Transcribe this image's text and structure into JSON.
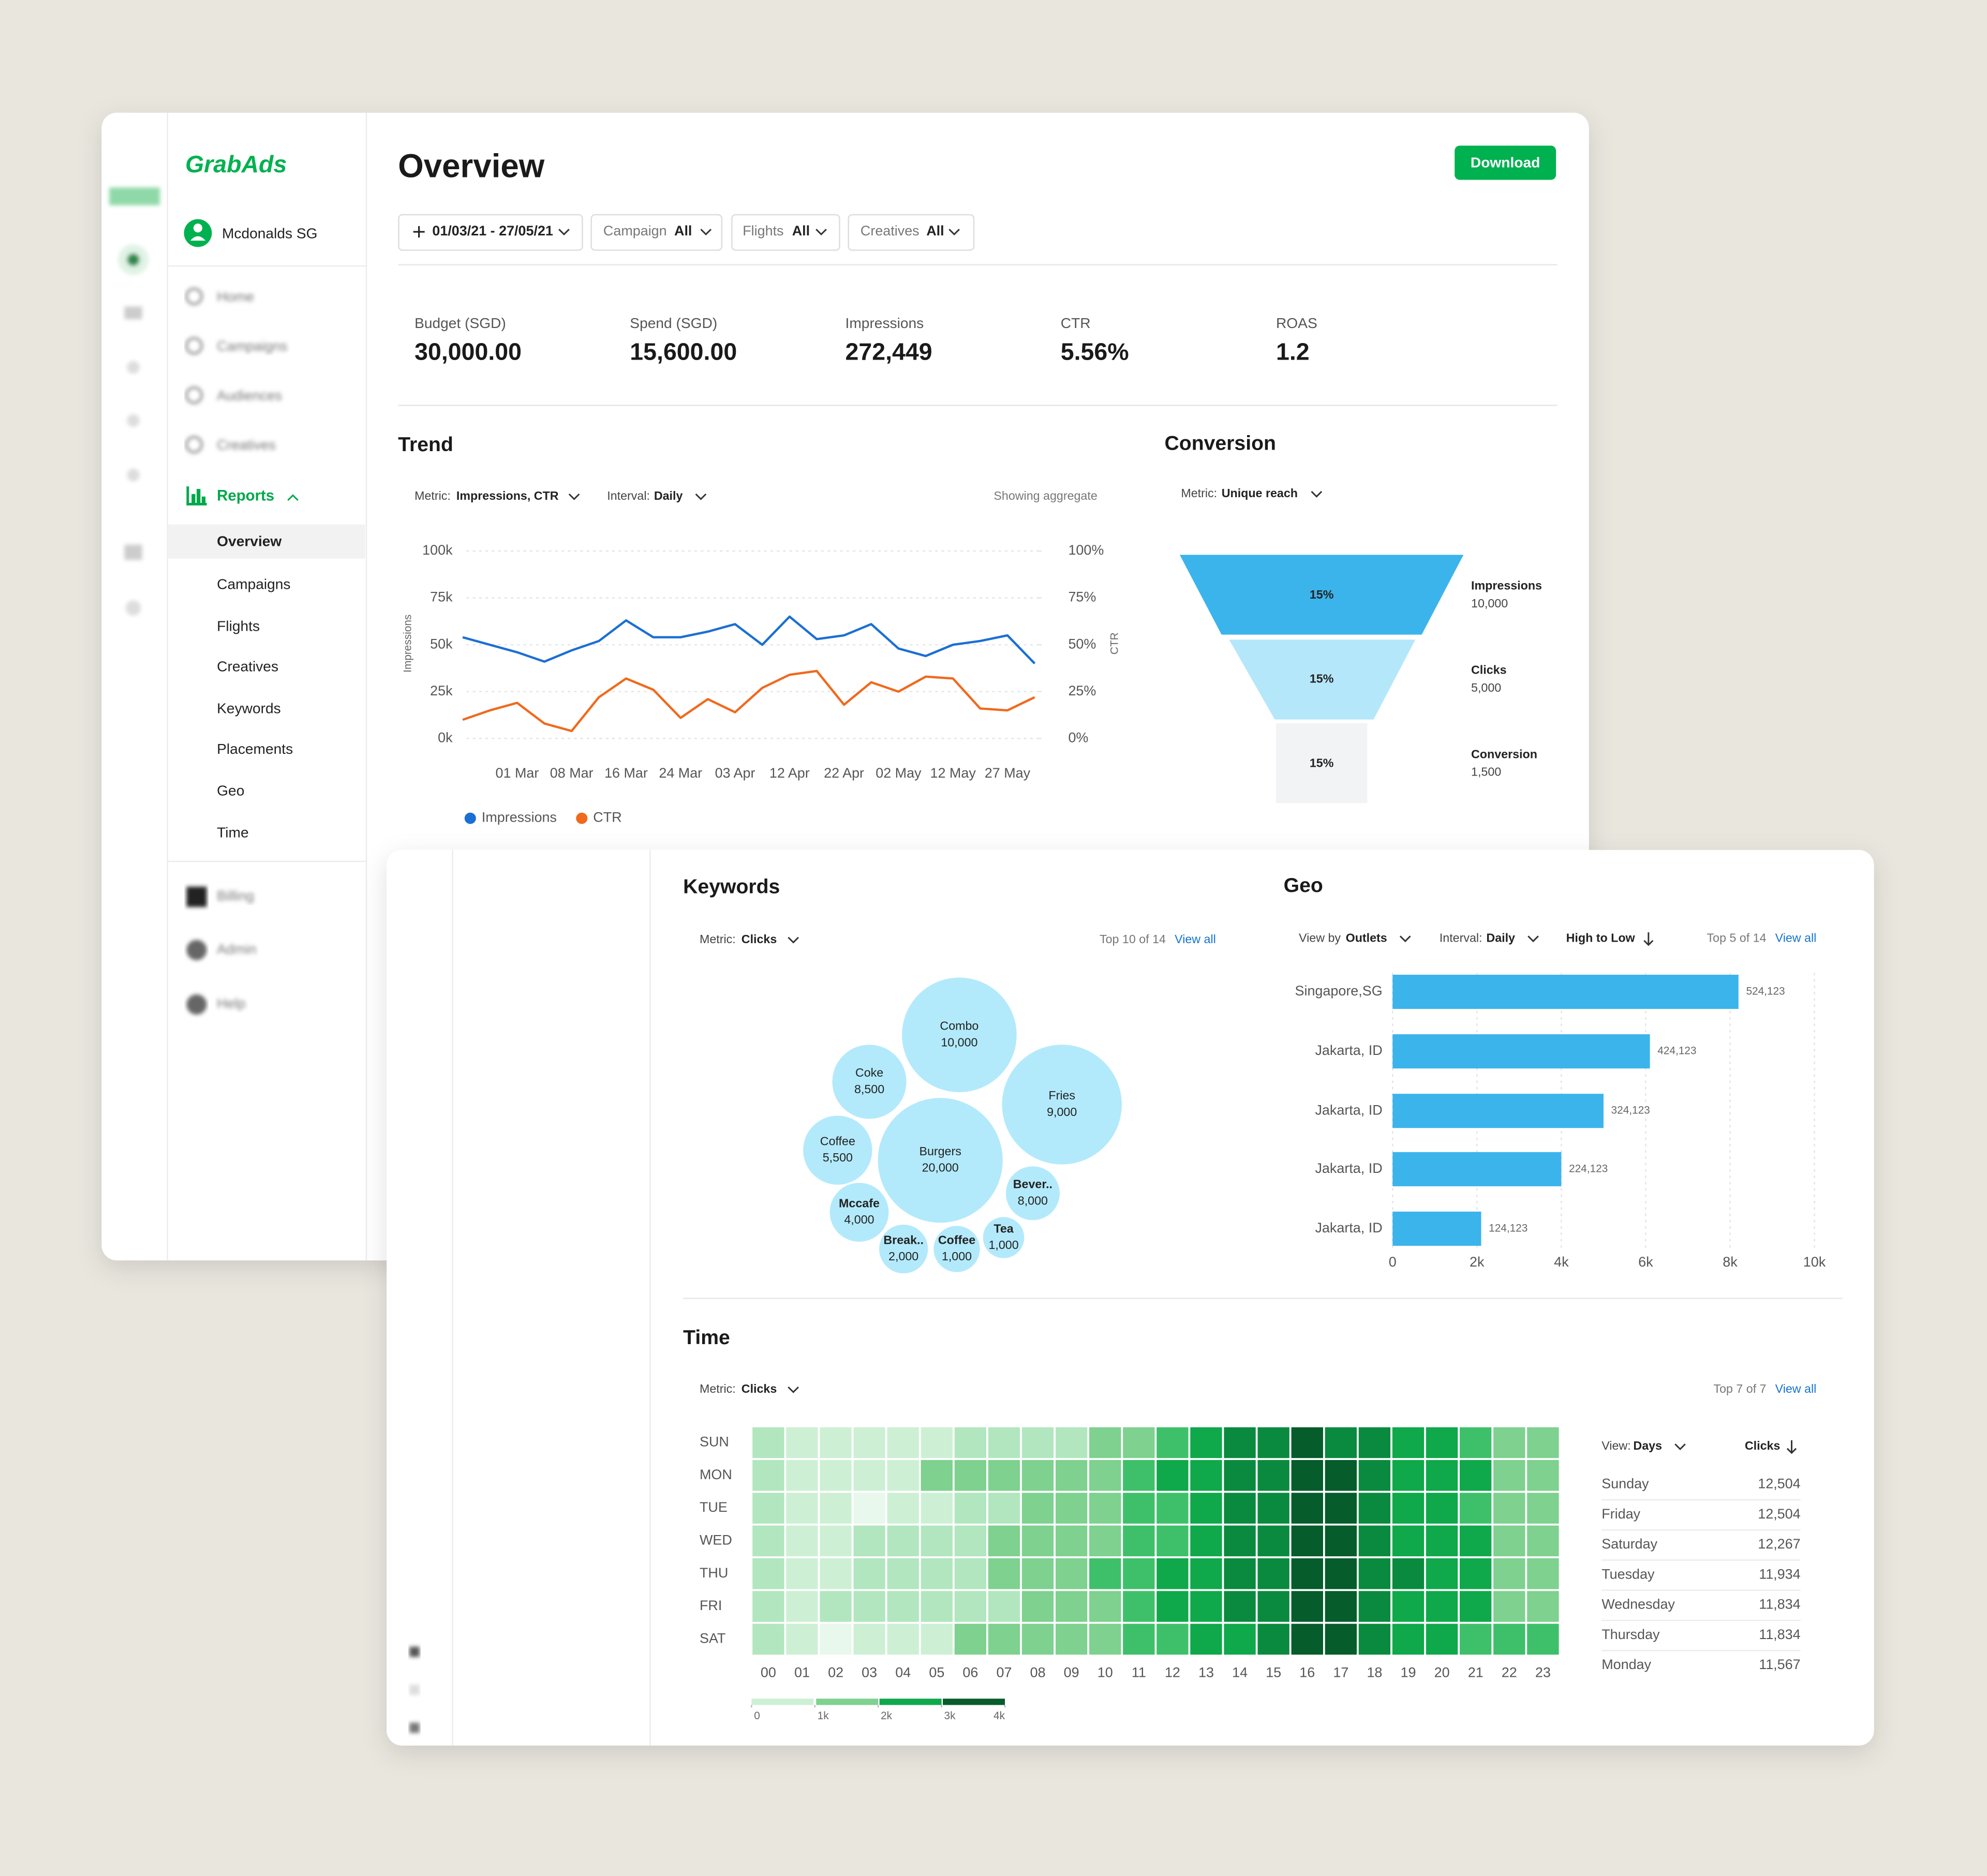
{
  "sidebar": {
    "brand": "GrabAds",
    "account": "Mcdonalds SG",
    "nav": [
      "Home",
      "Campaigns",
      "Audiences",
      "Creatives"
    ],
    "reports": "Reports",
    "reports_nav": [
      "Overview",
      "Campaigns",
      "Flights",
      "Creatives",
      "Keywords",
      "Placements",
      "Geo",
      "Time"
    ],
    "footer_nav": [
      "Billing",
      "Admin",
      "Help"
    ]
  },
  "header": {
    "title": "Overview",
    "download": "Download",
    "date_range": "01/03/21 - 27/05/21",
    "filters": [
      {
        "label": "Campaign",
        "value": "All"
      },
      {
        "label": "Flights",
        "value": "All"
      },
      {
        "label": "Creatives",
        "value": "All"
      }
    ]
  },
  "kpis": [
    {
      "label": "Budget (SGD)",
      "value": "30,000.00"
    },
    {
      "label": "Spend (SGD)",
      "value": "15,600.00"
    },
    {
      "label": "Impressions",
      "value": "272,449"
    },
    {
      "label": "CTR",
      "value": "5.56%"
    },
    {
      "label": "ROAS",
      "value": "1.2"
    }
  ],
  "trend": {
    "title": "Trend",
    "metric_label": "Metric:",
    "metric": "Impressions, CTR",
    "interval_label": "Interval:",
    "interval": "Daily",
    "note": "Showing aggregate",
    "chart_data": {
      "type": "line",
      "ylabel": "Impressions",
      "y2label": "CTR",
      "grid": true,
      "categories": [
        null,
        null,
        "01 Mar",
        null,
        "08 Mar",
        null,
        "16 Mar",
        null,
        "24 Mar",
        null,
        "03 Apr",
        null,
        "12 Apr",
        null,
        "22 Apr",
        null,
        "02 May",
        null,
        "12 May",
        null,
        "27 May",
        null
      ],
      "series": [
        {
          "name": "Impressions",
          "color": "#1a6fd4",
          "values": [
            54000,
            50000,
            46000,
            41000,
            47000,
            52000,
            63000,
            54000,
            54000,
            57000,
            61000,
            50000,
            65000,
            53000,
            55000,
            61000,
            48000,
            44000,
            50000,
            52000,
            55000,
            40000
          ]
        },
        {
          "name": "CTR",
          "color": "#f0691c",
          "axis": "y2",
          "values": [
            10,
            15,
            19,
            8,
            4,
            22,
            32,
            26,
            11,
            21,
            14,
            27,
            34,
            36,
            18,
            30,
            25,
            33,
            32,
            16,
            15,
            22
          ]
        }
      ],
      "ylim": [
        0,
        100000
      ],
      "yticks": [
        {
          "value": 0,
          "label": "0k"
        },
        {
          "value": 25000,
          "label": "25k"
        },
        {
          "value": 50000,
          "label": "50k"
        },
        {
          "value": 75000,
          "label": "75k"
        },
        {
          "value": 100000,
          "label": "100k"
        }
      ],
      "y2lim": [
        0,
        100
      ],
      "y2ticks": [
        {
          "value": 0,
          "label": "0%"
        },
        {
          "value": 25,
          "label": "25%"
        },
        {
          "value": 50,
          "label": "50%"
        },
        {
          "value": 75,
          "label": "75%"
        },
        {
          "value": 100,
          "label": "100%"
        }
      ]
    }
  },
  "conversion": {
    "title": "Conversion",
    "metric_label": "Metric:",
    "metric": "Unique reach",
    "chart_data": {
      "type": "funnel",
      "colors": [
        "#3bb4ec",
        "#b5e7fa",
        "#f1f3f4"
      ],
      "stages": [
        {
          "name": "Impressions",
          "value": 10000,
          "value_label": "10,000",
          "share": 15,
          "share_label": "15%"
        },
        {
          "name": "Clicks",
          "value": 5000,
          "value_label": "5,000",
          "share": 15,
          "share_label": "15%"
        },
        {
          "name": "Conversion",
          "value": 1500,
          "value_label": "1,500",
          "share": 15,
          "share_label": "15%"
        }
      ]
    }
  },
  "keywords": {
    "title": "Keywords",
    "metric_label": "Metric:",
    "metric": "Clicks",
    "count": "Top 10 of 14",
    "view_all": "View all",
    "chart_data": {
      "type": "bubble",
      "color": "#b3eafb",
      "names": [
        "Combo",
        "Coke",
        "Fries",
        "Coffee",
        "Burgers",
        "Bever..",
        "Mccafe",
        "Break..",
        "Coffee",
        "Tea"
      ],
      "values": [
        10000,
        8500,
        9000,
        5500,
        20000,
        8000,
        4000,
        2000,
        1000,
        1000
      ],
      "value_labels": [
        "10,000",
        "8,500",
        "9,000",
        "5,500",
        "20,000",
        "8,000",
        "4,000",
        "2,000",
        "1,000",
        "1,000"
      ]
    }
  },
  "geo": {
    "title": "Geo",
    "view_label": "View by",
    "view": "Outlets",
    "interval_label": "Interval:",
    "interval": "Daily",
    "sort": "High to Low",
    "count": "Top 5 of 14",
    "view_all": "View all",
    "chart_data": {
      "type": "hbar",
      "color": "#3bb4ec",
      "grid": true,
      "categories": [
        "Singapore,SG",
        "Jakarta, ID",
        "Jakarta, ID",
        "Jakarta, ID",
        "Jakarta, ID"
      ],
      "values": [
        8200,
        6100,
        5000,
        4000,
        2100
      ],
      "totals": [
        "524,123",
        "424,123",
        "324,123",
        "224,123",
        "124,123"
      ],
      "xlim": [
        0,
        10000
      ],
      "xticks": [
        0,
        {
          "value": 2000,
          "label": "2k"
        },
        {
          "value": 4000,
          "label": "4k"
        },
        {
          "value": 6000,
          "label": "6k"
        },
        {
          "value": 8000,
          "label": "8k"
        },
        {
          "value": 10000,
          "label": "10k"
        }
      ]
    }
  },
  "time": {
    "title": "Time",
    "metric_label": "Metric:",
    "metric": "Clicks",
    "count": "Top 7 of 7",
    "view_all": "View all",
    "chart_data": {
      "type": "heatmap",
      "colors": [
        "#e8f8ec",
        "#cdf0d5",
        "#b2e6bf",
        "#7ed18f",
        "#3ec06a",
        "#0fa84b",
        "#0a8a3e",
        "#065c2b"
      ],
      "rows": [
        "SUN",
        "MON",
        "TUE",
        "WED",
        "THU",
        "FRI",
        "SAT"
      ],
      "columns": [
        "00",
        "01",
        "02",
        "03",
        "04",
        "05",
        "06",
        "07",
        "08",
        "09",
        "10",
        "11",
        "12",
        "13",
        "14",
        "15",
        "16",
        "17",
        "18",
        "19",
        "20",
        "21",
        "22",
        "23"
      ],
      "values": [
        [
          1000,
          500,
          500,
          500,
          500,
          500,
          1000,
          1000,
          1000,
          1000,
          1500,
          1500,
          2000,
          2500,
          3000,
          3000,
          3500,
          3000,
          3000,
          2500,
          2500,
          2000,
          1500,
          1500
        ],
        [
          1000,
          500,
          500,
          500,
          500,
          1500,
          1500,
          1500,
          1500,
          1500,
          1500,
          2000,
          2500,
          2500,
          3000,
          3000,
          3500,
          3500,
          3000,
          2500,
          2500,
          2500,
          1500,
          1500
        ],
        [
          1000,
          500,
          500,
          0,
          500,
          500,
          1000,
          1000,
          1500,
          1500,
          1500,
          2000,
          2000,
          2500,
          3000,
          3000,
          3500,
          3500,
          3000,
          2500,
          2500,
          2000,
          1500,
          1500
        ],
        [
          1000,
          500,
          500,
          1000,
          1000,
          1000,
          1000,
          1500,
          1500,
          1500,
          1500,
          2000,
          2000,
          2500,
          3000,
          3000,
          3500,
          3500,
          3000,
          2500,
          2500,
          2500,
          1500,
          1500
        ],
        [
          1000,
          500,
          500,
          1000,
          1000,
          1000,
          1000,
          1500,
          1500,
          1500,
          2000,
          2000,
          2500,
          2500,
          3000,
          3000,
          3500,
          3500,
          3000,
          3000,
          2500,
          2500,
          1500,
          1500
        ],
        [
          1000,
          500,
          1000,
          1000,
          1000,
          1000,
          1000,
          1000,
          1500,
          1500,
          1500,
          2000,
          2500,
          2500,
          3000,
          3000,
          3500,
          3500,
          3000,
          2500,
          2500,
          2500,
          1500,
          1500
        ],
        [
          1000,
          500,
          0,
          500,
          500,
          500,
          1500,
          1500,
          1500,
          1500,
          1500,
          2000,
          2000,
          2500,
          2500,
          3000,
          3500,
          3500,
          3000,
          2500,
          2500,
          2000,
          2000,
          2000
        ]
      ],
      "legend_ticks": [
        0,
        {
          "value": 1000,
          "label": "1k"
        },
        {
          "value": 2000,
          "label": "2k"
        },
        {
          "value": 3000,
          "label": "3k"
        },
        {
          "value": 4000,
          "label": "4k"
        }
      ]
    },
    "table": {
      "view_label": "View:",
      "view": "Days",
      "column": "Clicks",
      "rows": [
        [
          "Sunday",
          "12,504"
        ],
        [
          "Friday",
          "12,504"
        ],
        [
          "Saturday",
          "12,267"
        ],
        [
          "Tuesday",
          "11,934"
        ],
        [
          "Wednesday",
          "11,834"
        ],
        [
          "Thursday",
          "11,834"
        ],
        [
          "Monday",
          "11,567"
        ]
      ]
    }
  }
}
